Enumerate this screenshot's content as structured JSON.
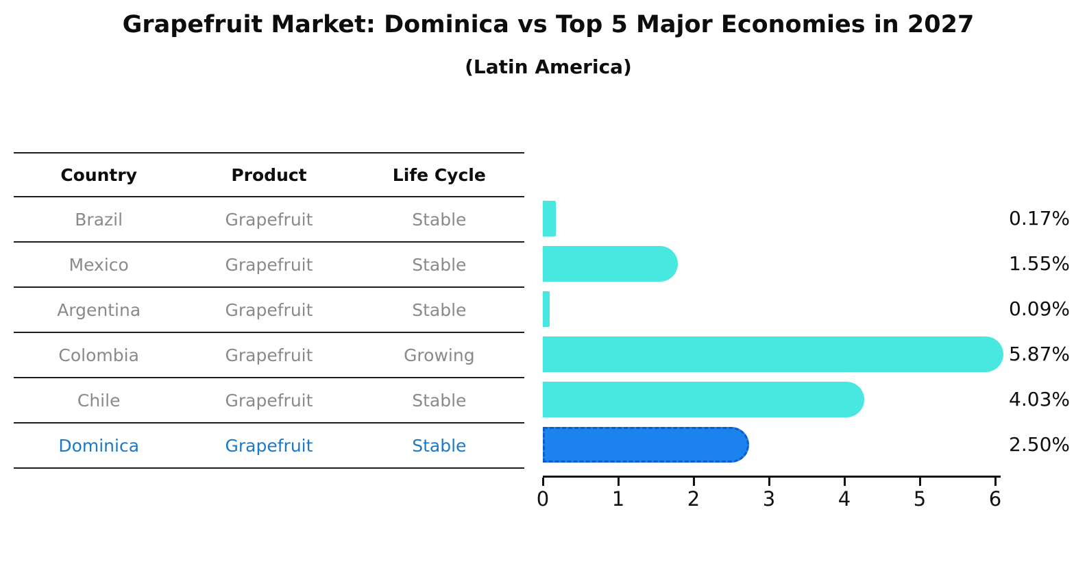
{
  "chart_data": {
    "type": "bar",
    "orientation": "horizontal",
    "title": "Grapefruit Market: Dominica vs Top 5 Major Economies in 2027",
    "subtitle": "(Latin America)",
    "categories": [
      "Brazil",
      "Mexico",
      "Argentina",
      "Colombia",
      "Chile",
      "Dominica"
    ],
    "values": [
      0.17,
      1.55,
      0.09,
      5.87,
      4.03,
      2.5
    ],
    "value_labels": [
      "0.17%",
      "1.55%",
      "0.09%",
      "5.87%",
      "4.03%",
      "2.50%"
    ],
    "xlim": [
      0,
      6
    ],
    "tick_labels": [
      "0",
      "1",
      "2",
      "3",
      "4",
      "5",
      "6"
    ],
    "grid": false,
    "legend": "none",
    "highlight_index": 5,
    "highlight_category": "Dominica"
  },
  "table": {
    "headers": [
      "Country",
      "Product",
      "Life Cycle"
    ],
    "rows": [
      {
        "country": "Brazil",
        "product": "Grapefruit",
        "life_cycle": "Stable",
        "highlight": false
      },
      {
        "country": "Mexico",
        "product": "Grapefruit",
        "life_cycle": "Stable",
        "highlight": false
      },
      {
        "country": "Argentina",
        "product": "Grapefruit",
        "life_cycle": "Stable",
        "highlight": false
      },
      {
        "country": "Colombia",
        "product": "Grapefruit",
        "life_cycle": "Growing",
        "highlight": false
      },
      {
        "country": "Chile",
        "product": "Grapefruit",
        "life_cycle": "Stable",
        "highlight": false
      },
      {
        "country": "Dominica",
        "product": "Grapefruit",
        "life_cycle": "Stable",
        "highlight": true
      }
    ]
  },
  "colors": {
    "bar": "#48e8e0",
    "highlight_bar": "#1c83ee",
    "highlight_edge": "#0d5cc9",
    "highlight_text": "#1e78c8",
    "row_text": "#8a8a8a",
    "header_text": "#0d0d0d",
    "axis": "#111111"
  }
}
